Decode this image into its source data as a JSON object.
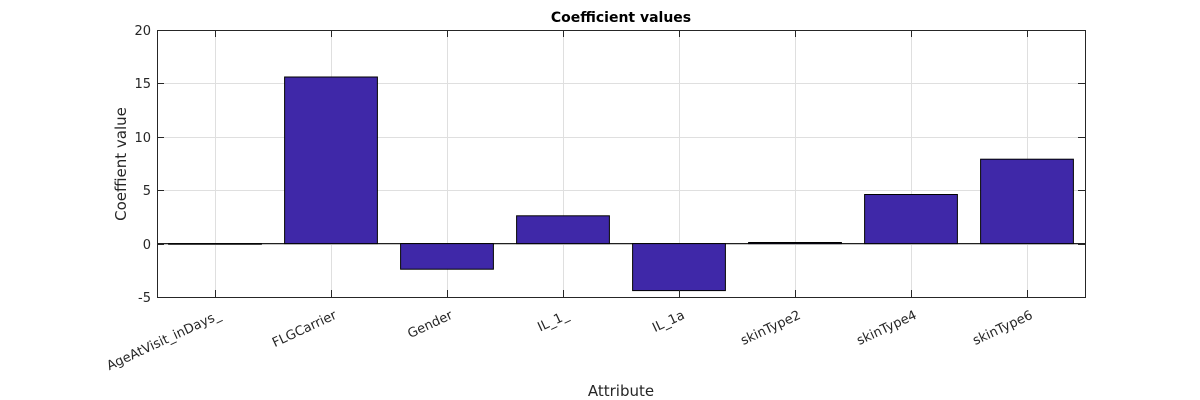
{
  "chart_data": {
    "type": "bar",
    "title": "Coefficient values",
    "xlabel": "Attribute",
    "ylabel": "Coeffient value",
    "ylim": [
      -5,
      20
    ],
    "yticks": [
      -5,
      0,
      5,
      10,
      15,
      20
    ],
    "grid": true,
    "categories": [
      "AgeAtVisit_inDays_",
      "FLGCarrier",
      "Gender",
      "IL_1_",
      "IL_1a",
      "skinType2",
      "skinType4",
      "skinType6"
    ],
    "values": [
      0.0,
      15.6,
      -2.4,
      2.6,
      -4.4,
      0.1,
      4.6,
      7.9
    ],
    "bar_color": "#3f28a8"
  }
}
